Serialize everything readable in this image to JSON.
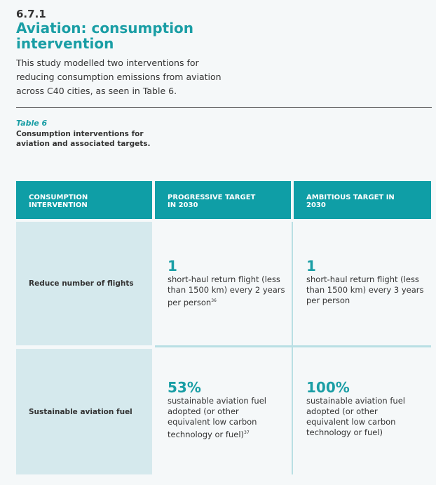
{
  "section": {
    "number": "6.7.1",
    "title": "Aviation: consumption intervention",
    "intro": "This study modelled two interventions for reducing consumption emissions from aviation across C40 cities, as seen in Table 6."
  },
  "table": {
    "label": "Table 6",
    "caption": "Consumption interventions for aviation and associated targets.",
    "headers": [
      "CONSUMPTION INTERVENTION",
      "PROGRESSIVE TARGET IN 2030",
      "AMBITIOUS TARGET IN 2030"
    ],
    "rows": [
      {
        "intervention": "Reduce number of flights",
        "progressive": {
          "value": "1",
          "text": "short-haul return flight (less than 1500 km) every 2 years per person",
          "footnote": "36"
        },
        "ambitious": {
          "value": "1",
          "text": "short-haul return flight (less than 1500 km) every 3 years per person"
        }
      },
      {
        "intervention": "Sustainable aviation fuel",
        "progressive": {
          "value": "53%",
          "text": "sustainable aviation fuel adopted (or other equivalent low carbon technology or fuel)",
          "footnote": "37"
        },
        "ambitious": {
          "value": "100%",
          "text": "sustainable aviation fuel adopted (or other equivalent low carbon technology or fuel)"
        }
      }
    ]
  },
  "colors": {
    "accent": "#0f9ea6",
    "label_fill": "#d5e9ed"
  }
}
